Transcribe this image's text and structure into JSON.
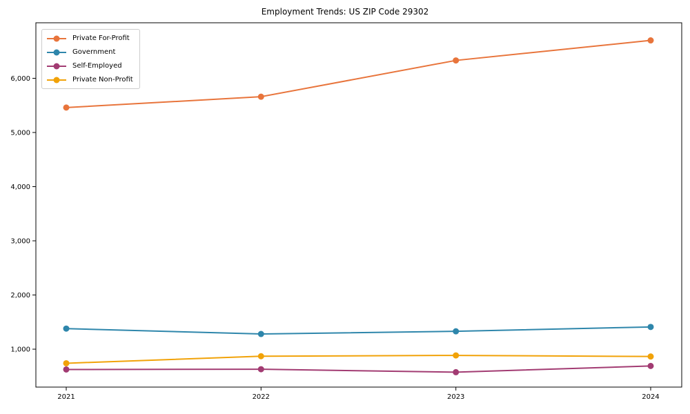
{
  "chart_data": {
    "type": "line",
    "title": "Employment Trends: US ZIP Code 29302",
    "x": [
      2021,
      2022,
      2023,
      2024
    ],
    "x_tick_labels": [
      "2021",
      "2022",
      "2023",
      "2024"
    ],
    "y_ticks": [
      1000,
      2000,
      3000,
      4000,
      5000,
      6000
    ],
    "y_tick_labels": [
      "1,000",
      "2,000",
      "3,000",
      "4,000",
      "5,000",
      "6,000"
    ],
    "ylim": [
      300,
      7025
    ],
    "xlabel": "",
    "ylabel": "",
    "grid": false,
    "legend_position": "upper-left",
    "axis_color": "#000000",
    "text_color": "#000000",
    "background_color": "#ffffff",
    "series": [
      {
        "name": "Private For-Profit",
        "color": "#e8743b",
        "values": [
          5460,
          5660,
          6330,
          6700
        ]
      },
      {
        "name": "Government",
        "color": "#2e86ab",
        "values": [
          1380,
          1280,
          1330,
          1410
        ]
      },
      {
        "name": "Self-Employed",
        "color": "#a23b72",
        "values": [
          625,
          630,
          575,
          690
        ]
      },
      {
        "name": "Private Non-Profit",
        "color": "#f1a208",
        "values": [
          740,
          870,
          885,
          865
        ]
      }
    ]
  }
}
